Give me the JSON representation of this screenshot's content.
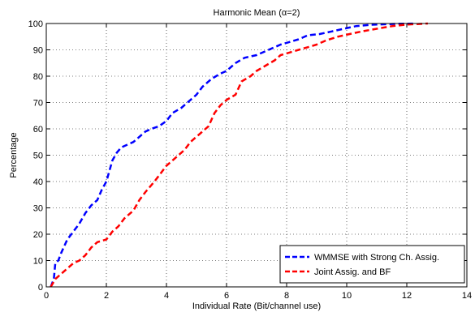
{
  "chart_data": {
    "type": "line",
    "title": "Harmonic Mean (α=2)",
    "xlabel": "Individual Rate (Bit/channel use)",
    "ylabel": "Percentage",
    "xlim": [
      0,
      14
    ],
    "ylim": [
      0,
      100
    ],
    "xticks": [
      0,
      2,
      4,
      6,
      8,
      10,
      12,
      14
    ],
    "yticks": [
      0,
      10,
      20,
      30,
      40,
      50,
      60,
      70,
      80,
      90,
      100
    ],
    "grid": true,
    "legend_position": "bottom-right",
    "series": [
      {
        "name": "WMMSE with Strong Ch. Assig.",
        "color": "#0000ff",
        "style": "dashed",
        "points": [
          [
            0.15,
            0
          ],
          [
            0.25,
            3
          ],
          [
            0.3,
            9
          ],
          [
            0.4,
            10
          ],
          [
            0.5,
            13
          ],
          [
            0.7,
            18
          ],
          [
            0.9,
            21
          ],
          [
            1.1,
            24
          ],
          [
            1.3,
            28
          ],
          [
            1.5,
            31
          ],
          [
            1.7,
            33
          ],
          [
            1.85,
            37
          ],
          [
            2.0,
            40
          ],
          [
            2.1,
            44
          ],
          [
            2.2,
            48
          ],
          [
            2.35,
            51
          ],
          [
            2.5,
            53
          ],
          [
            2.7,
            54
          ],
          [
            2.9,
            55
          ],
          [
            3.1,
            57
          ],
          [
            3.3,
            59
          ],
          [
            3.5,
            60
          ],
          [
            3.75,
            61
          ],
          [
            4.0,
            63
          ],
          [
            4.2,
            66
          ],
          [
            4.5,
            68
          ],
          [
            4.8,
            71
          ],
          [
            5.0,
            73
          ],
          [
            5.2,
            76
          ],
          [
            5.5,
            79
          ],
          [
            5.8,
            81
          ],
          [
            6.0,
            82
          ],
          [
            6.3,
            85
          ],
          [
            6.6,
            87
          ],
          [
            7.0,
            88
          ],
          [
            7.4,
            90
          ],
          [
            7.8,
            92
          ],
          [
            8.1,
            93
          ],
          [
            8.4,
            94
          ],
          [
            8.7,
            95.5
          ],
          [
            9.1,
            96
          ],
          [
            9.5,
            97
          ],
          [
            9.9,
            98
          ],
          [
            10.3,
            99
          ],
          [
            10.8,
            99.5
          ],
          [
            11.5,
            99.8
          ],
          [
            12.3,
            100
          ]
        ]
      },
      {
        "name": "Joint Assig. and BF",
        "color": "#ff0000",
        "style": "dashed",
        "points": [
          [
            0.15,
            0
          ],
          [
            0.3,
            3
          ],
          [
            0.5,
            5
          ],
          [
            0.7,
            7
          ],
          [
            0.9,
            9
          ],
          [
            1.1,
            10
          ],
          [
            1.3,
            12
          ],
          [
            1.5,
            15
          ],
          [
            1.7,
            17
          ],
          [
            2.0,
            18
          ],
          [
            2.2,
            21
          ],
          [
            2.4,
            23
          ],
          [
            2.6,
            26
          ],
          [
            2.9,
            29
          ],
          [
            3.1,
            33
          ],
          [
            3.3,
            36
          ],
          [
            3.6,
            40
          ],
          [
            3.8,
            43
          ],
          [
            4.0,
            46
          ],
          [
            4.3,
            49
          ],
          [
            4.6,
            52
          ],
          [
            4.8,
            55
          ],
          [
            5.1,
            58
          ],
          [
            5.4,
            61
          ],
          [
            5.6,
            66
          ],
          [
            5.8,
            69
          ],
          [
            6.0,
            71
          ],
          [
            6.3,
            73
          ],
          [
            6.5,
            78
          ],
          [
            6.8,
            80
          ],
          [
            7.0,
            82
          ],
          [
            7.3,
            84
          ],
          [
            7.6,
            86
          ],
          [
            7.8,
            88
          ],
          [
            8.1,
            89
          ],
          [
            8.4,
            90
          ],
          [
            8.7,
            91
          ],
          [
            9.0,
            92
          ],
          [
            9.3,
            93.5
          ],
          [
            9.7,
            95
          ],
          [
            10.1,
            96
          ],
          [
            10.5,
            97
          ],
          [
            11.0,
            98
          ],
          [
            11.5,
            99
          ],
          [
            12.0,
            99.6
          ],
          [
            12.7,
            100
          ]
        ]
      }
    ]
  }
}
